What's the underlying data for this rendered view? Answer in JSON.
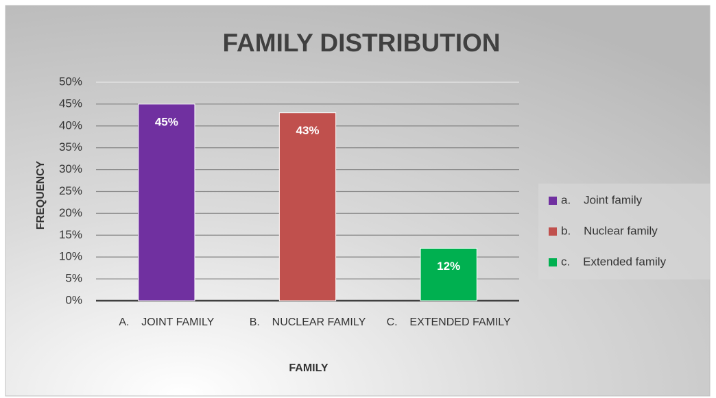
{
  "chart_data": {
    "type": "bar",
    "title": "FAMILY DISTRIBUTION",
    "x_label": "FAMILY",
    "y_label": "FREQUENCY",
    "categories": [
      "A.    JOINT FAMILY",
      "B.    NUCLEAR FAMILY",
      "C.    EXTENDED FAMILY"
    ],
    "values": [
      45,
      43,
      12
    ],
    "value_labels": [
      "45%",
      "43%",
      "12%"
    ],
    "colors": [
      "#7030a0",
      "#c0504d",
      "#00b050"
    ],
    "legend": [
      "a.    Joint family",
      "b.    Nuclear family",
      "c.    Extended family"
    ],
    "legend_position": "right",
    "ylim": [
      0,
      50
    ],
    "yticks": [
      {
        "value": 0,
        "label": "0%"
      },
      {
        "value": 5,
        "label": "5%"
      },
      {
        "value": 10,
        "label": "10%"
      },
      {
        "value": 15,
        "label": "15%"
      },
      {
        "value": 20,
        "label": "20%"
      },
      {
        "value": 25,
        "label": "25%"
      },
      {
        "value": 30,
        "label": "30%"
      },
      {
        "value": 35,
        "label": "35%"
      },
      {
        "value": 40,
        "label": "40%"
      },
      {
        "value": 45,
        "label": "45%"
      },
      {
        "value": 50,
        "label": "50%"
      }
    ],
    "grid": true
  }
}
